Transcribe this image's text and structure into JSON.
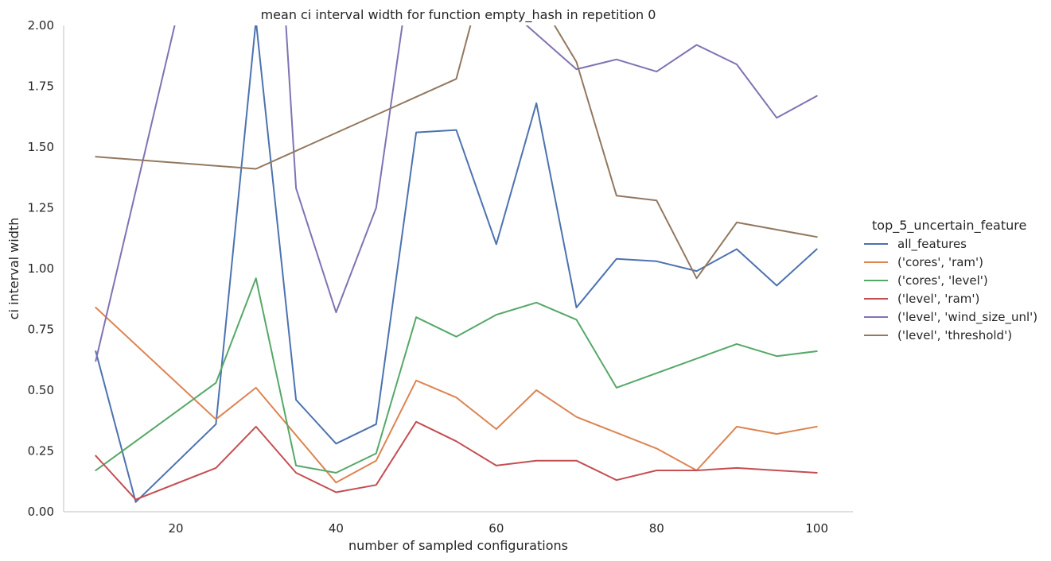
{
  "chart_data": {
    "type": "line",
    "title": "mean ci interval width for function empty_hash in repetition 0",
    "xlabel": "number of sampled configurations",
    "ylabel": "ci interval width",
    "xlim": [
      6,
      104.5
    ],
    "ylim": [
      0,
      2.0
    ],
    "xticks": [
      20,
      40,
      60,
      80,
      100
    ],
    "yticks": [
      0.0,
      0.25,
      0.5,
      0.75,
      1.0,
      1.25,
      1.5,
      1.75,
      2.0
    ],
    "ytick_labels": [
      "0.00",
      "0.25",
      "0.50",
      "0.75",
      "1.00",
      "1.25",
      "1.50",
      "1.75",
      "2.00"
    ],
    "grid": false,
    "legend_title": "top_5_uncertain_feature",
    "legend_position": "right",
    "series": [
      {
        "name": "all_features",
        "color": "#4c72b0",
        "x": [
          10,
          15,
          25,
          30,
          35,
          40,
          45,
          50,
          55,
          60,
          65,
          70,
          75,
          80,
          85,
          90,
          95,
          100
        ],
        "y": [
          0.66,
          0.04,
          0.36,
          2.02,
          0.46,
          0.28,
          0.36,
          1.56,
          1.57,
          1.1,
          1.68,
          0.84,
          1.04,
          1.03,
          0.99,
          1.08,
          0.93,
          1.08
        ]
      },
      {
        "name": "('cores', 'ram')",
        "color": "#dd8452",
        "x": [
          10,
          25,
          30,
          40,
          45,
          50,
          55,
          60,
          65,
          70,
          80,
          85,
          90,
          95,
          100
        ],
        "y": [
          0.84,
          0.38,
          0.51,
          0.12,
          0.21,
          0.54,
          0.47,
          0.34,
          0.5,
          0.39,
          0.26,
          0.17,
          0.35,
          0.32,
          0.35
        ]
      },
      {
        "name": "('cores', 'level')",
        "color": "#55a868",
        "x": [
          10,
          25,
          30,
          35,
          40,
          45,
          50,
          55,
          60,
          65,
          70,
          75,
          90,
          95,
          100
        ],
        "y": [
          0.17,
          0.53,
          0.96,
          0.19,
          0.16,
          0.24,
          0.8,
          0.72,
          0.81,
          0.86,
          0.79,
          0.51,
          0.69,
          0.64,
          0.66
        ]
      },
      {
        "name": "('level', 'ram')",
        "color": "#c44e52",
        "x": [
          10,
          15,
          25,
          30,
          35,
          40,
          45,
          50,
          55,
          60,
          65,
          70,
          75,
          80,
          85,
          90,
          95,
          100
        ],
        "y": [
          0.23,
          0.05,
          0.18,
          0.35,
          0.16,
          0.08,
          0.11,
          0.37,
          0.29,
          0.19,
          0.21,
          0.21,
          0.13,
          0.17,
          0.17,
          0.18,
          0.17,
          0.16
        ]
      },
      {
        "name": "('level', 'wind_size_unl')",
        "color": "#8172b3",
        "x": [
          10,
          20,
          33,
          35,
          40,
          45,
          50,
          70,
          75,
          80,
          85,
          90,
          95,
          100
        ],
        "y": [
          0.62,
          2.02,
          2.4,
          1.33,
          0.82,
          1.25,
          2.4,
          1.82,
          1.86,
          1.81,
          1.92,
          1.84,
          1.62,
          1.71
        ]
      },
      {
        "name": "('level', 'threshold')",
        "color": "#937860",
        "x": [
          10,
          30,
          55,
          60,
          70,
          75,
          80,
          85,
          90,
          100
        ],
        "y": [
          1.46,
          1.41,
          1.78,
          2.4,
          1.85,
          1.3,
          1.28,
          0.96,
          1.19,
          1.13
        ]
      }
    ]
  }
}
